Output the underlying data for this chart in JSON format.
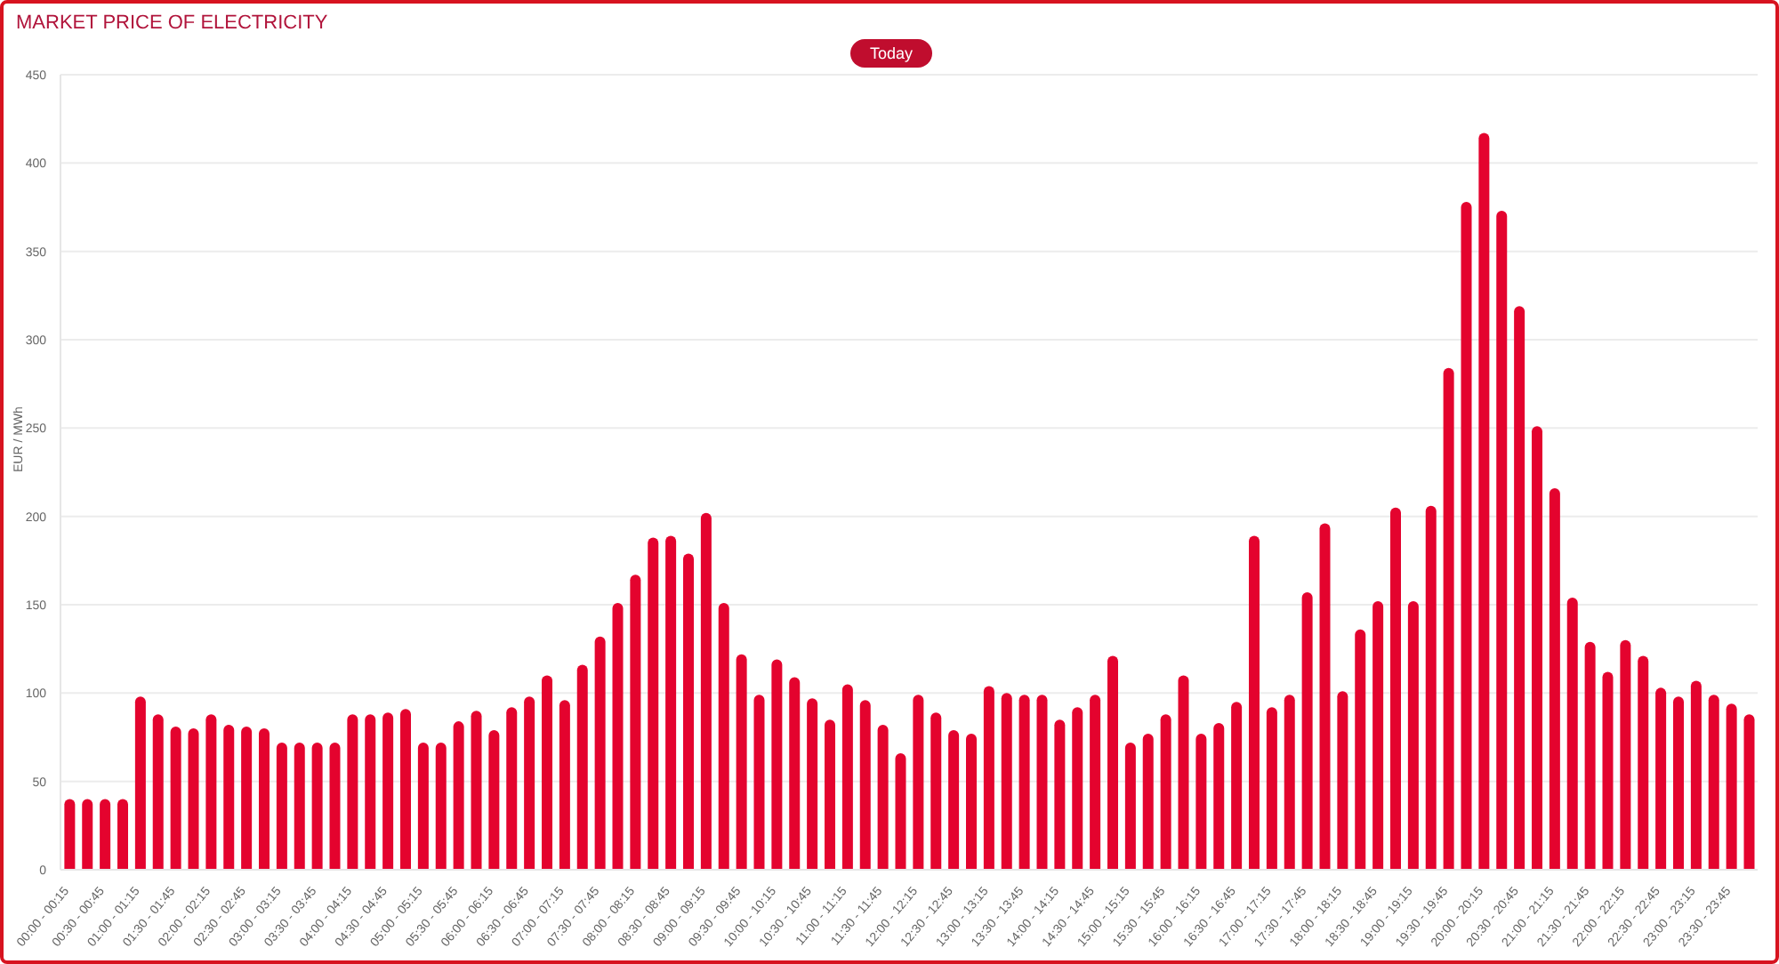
{
  "chart_data": {
    "type": "bar",
    "title": "MARKET PRICE OF ELECTRICITY",
    "ylabel": "EUR / MWh",
    "annotations": [
      "Today"
    ],
    "categories": [
      "00:00 - 00:15",
      null,
      "00:30 - 00:45",
      null,
      "01:00 - 01:15",
      null,
      "01:30 - 01:45",
      null,
      "02:00 - 02:15",
      null,
      "02:30 - 02:45",
      null,
      "03:00 - 03:15",
      null,
      "03:30 - 03:45",
      null,
      "04:00 - 04:15",
      null,
      "04:30 - 04:45",
      null,
      "05:00 - 05:15",
      null,
      "05:30 - 05:45",
      null,
      "06:00 - 06:15",
      null,
      "06:30 - 06:45",
      null,
      "07:00 - 07:15",
      null,
      "07:30 - 07:45",
      null,
      "08:00 - 08:15",
      null,
      "08:30 - 08:45",
      null,
      "09:00 - 09:15",
      null,
      "09:30 - 09:45",
      null,
      "10:00 - 10:15",
      null,
      "10:30 - 10:45",
      null,
      "11:00 - 11:15",
      null,
      "11:30 - 11:45",
      null,
      "12:00 - 12:15",
      null,
      "12:30 - 12:45",
      null,
      "13:00 - 13:15",
      null,
      "13:30 - 13:45",
      null,
      "14:00 - 14:15",
      null,
      "14:30 - 14:45",
      null,
      "15:00 - 15:15",
      null,
      "15:30 - 15:45",
      null,
      "16:00 - 16:15",
      null,
      "16:30 - 16:45",
      null,
      "17:00 - 17:15",
      null,
      "17:30 - 17:45",
      null,
      "18:00 - 18:15",
      null,
      "18:30 - 18:45",
      null,
      "19:00 - 19:15",
      null,
      "19:30 - 19:45",
      null,
      "20:00 - 20:15",
      null,
      "20:30 - 20:45",
      null,
      "21:00 - 21:15",
      null,
      "21:30 - 21:45",
      null,
      "22:00 - 22:15",
      null,
      "22:30 - 22:45",
      null,
      "23:00 - 23:15",
      null,
      "23:30 - 23:45",
      null
    ],
    "values": [
      40,
      40,
      40,
      40,
      98,
      88,
      81,
      80,
      88,
      82,
      81,
      80,
      72,
      72,
      72,
      72,
      88,
      88,
      89,
      91,
      72,
      72,
      84,
      90,
      79,
      92,
      98,
      110,
      96,
      116,
      132,
      151,
      167,
      188,
      189,
      179,
      202,
      151,
      122,
      99,
      119,
      109,
      97,
      85,
      105,
      96,
      82,
      66,
      99,
      89,
      79,
      77,
      104,
      100,
      99,
      99,
      85,
      92,
      99,
      121,
      72,
      77,
      88,
      110,
      77,
      83,
      95,
      189,
      92,
      99,
      157,
      196,
      101,
      136,
      152,
      205,
      152,
      206,
      284,
      378,
      417,
      373,
      319,
      251,
      216,
      154,
      129,
      112,
      130,
      121,
      103,
      98,
      107,
      99,
      94,
      88
    ],
    "color": "#e4032e",
    "ylim": [
      0,
      450
    ],
    "yticks": [
      0,
      50,
      100,
      150,
      200,
      250,
      300,
      350,
      400,
      450
    ],
    "grid": "y"
  }
}
